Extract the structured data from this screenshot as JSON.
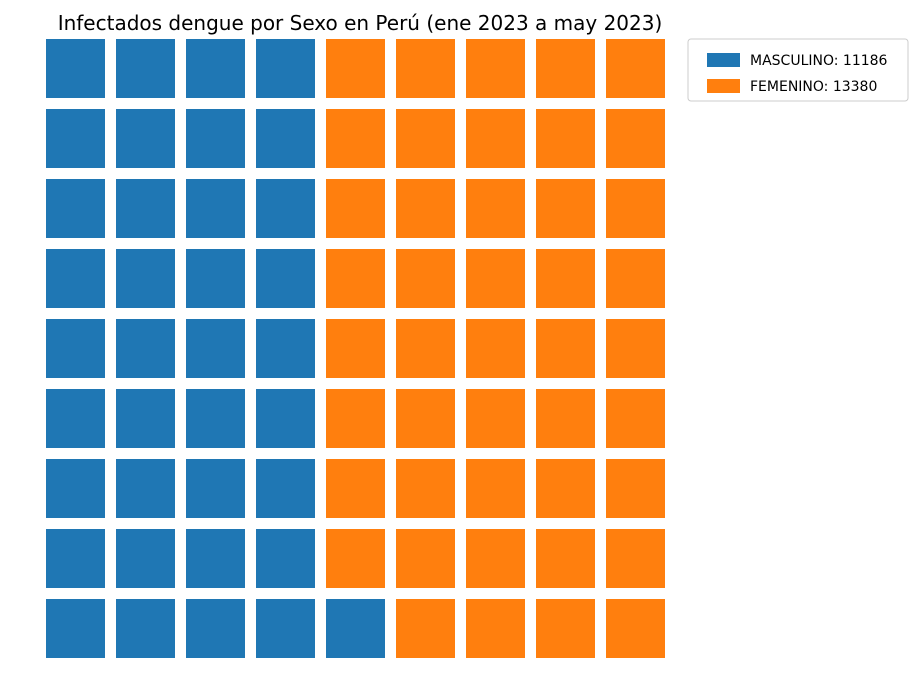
{
  "chart_data": {
    "type": "waffle",
    "title": "Infectados dengue por Sexo en Perú (ene 2023 a may 2023)",
    "xlabel": "",
    "ylabel": "",
    "grid_rows": 9,
    "grid_cols": 9,
    "fill_order": "column-major from bottom-left",
    "series": [
      {
        "name": "MASCULINO",
        "value": 11186,
        "cells": 37,
        "color": "#1f77b4",
        "legend_label": "MASCULINO: 11186"
      },
      {
        "name": "FEMENINO",
        "value": 13380,
        "cells": 44,
        "color": "#ff7f0e",
        "legend_label": "FEMENINO: 13380"
      }
    ],
    "legend": {
      "placement": "top-right, outside plot"
    },
    "grid": false
  }
}
